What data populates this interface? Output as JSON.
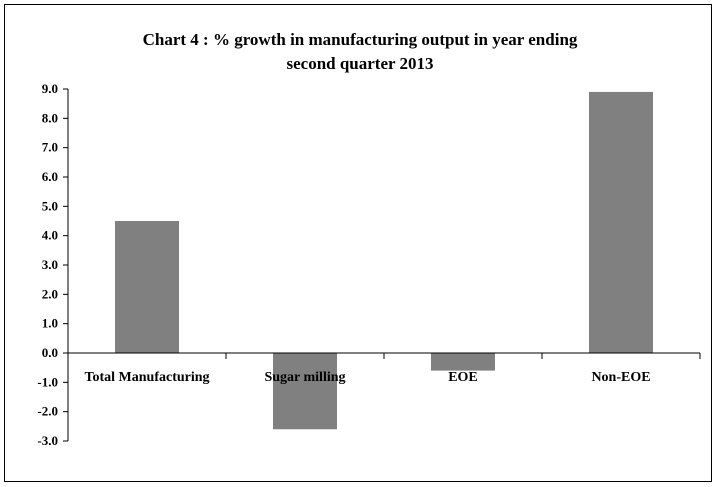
{
  "chart_data": {
    "type": "bar",
    "title_lines": [
      "Chart 4 : % growth in manufacturing output in  year ending",
      "second quarter 2013"
    ],
    "categories": [
      "Total Manufacturing",
      "Sugar milling",
      "EOE",
      "Non-EOE"
    ],
    "values": [
      4.5,
      -2.6,
      -0.6,
      8.9
    ],
    "ylim": [
      -3.0,
      9.0
    ],
    "yticks": [
      "9.0",
      "8.0",
      "7.0",
      "6.0",
      "5.0",
      "4.0",
      "3.0",
      "2.0",
      "1.0",
      "0.0",
      "-1.0",
      "-2.0",
      "-3.0"
    ],
    "bar_color": "#808080",
    "grid": false,
    "legend": "none"
  }
}
